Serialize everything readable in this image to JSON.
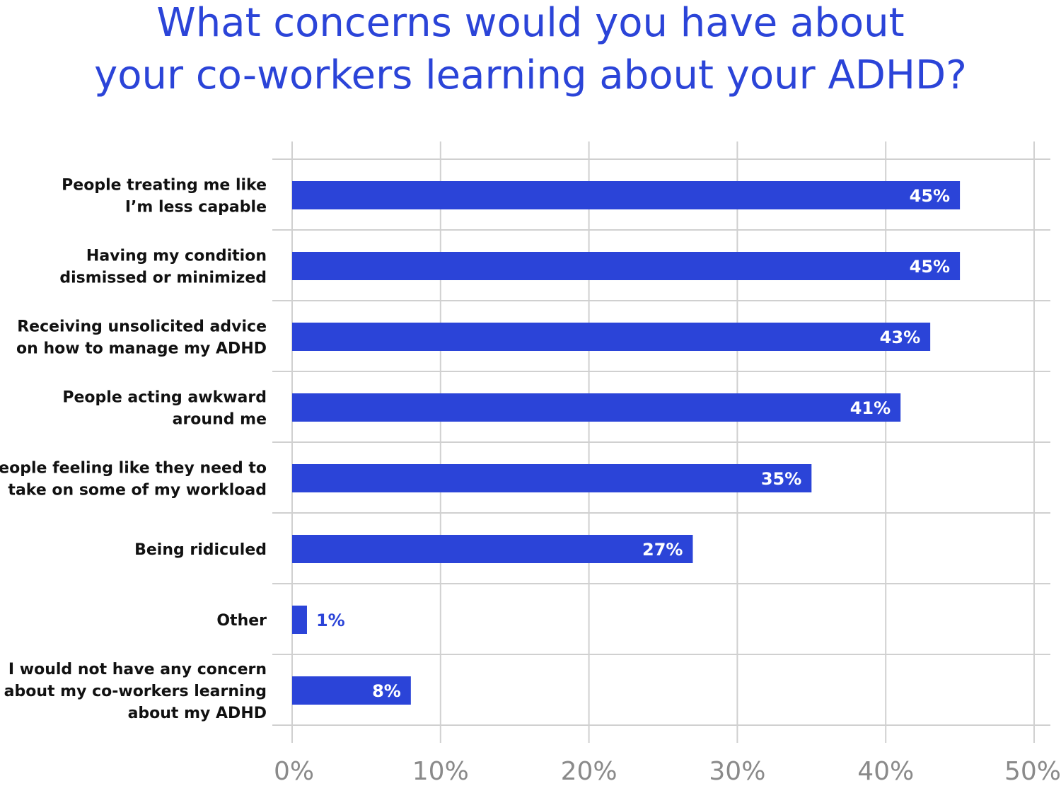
{
  "chart_data": {
    "type": "bar",
    "orientation": "horizontal",
    "title_lines": [
      "What concerns would you have about",
      "your co-workers learning about your ADHD?"
    ],
    "categories": [
      [
        "People treating me like",
        "I’m less capable"
      ],
      [
        "Having my condition",
        "dismissed or minimized"
      ],
      [
        "Receiving unsolicited advice",
        "on how to manage my ADHD"
      ],
      [
        "People acting awkward",
        "around me"
      ],
      [
        "People feeling like they need to",
        "take on some of my workload"
      ],
      [
        "Being ridiculed"
      ],
      [
        "Other"
      ],
      [
        "I would not have any concern",
        "about my co-workers learning",
        "about my ADHD"
      ]
    ],
    "values": [
      45,
      45,
      43,
      41,
      35,
      27,
      1,
      8
    ],
    "value_labels": [
      "45%",
      "45%",
      "43%",
      "41%",
      "35%",
      "27%",
      "1%",
      "8%"
    ],
    "xlim": [
      0,
      50
    ],
    "xticks": [
      0,
      10,
      20,
      30,
      40,
      50
    ],
    "xtick_labels": [
      "0%",
      "10%",
      "20%",
      "30%",
      "40%",
      "50%"
    ],
    "xlabel": "",
    "ylabel": "",
    "grid": true,
    "colors": {
      "bar": "#2b44d8",
      "title": "#2b44d8",
      "grid": "#d0d0d0",
      "tick_text": "#8a8a8a",
      "category_text": "#111111",
      "label_inside": "#ffffff",
      "label_outside": "#2b44d8"
    }
  }
}
